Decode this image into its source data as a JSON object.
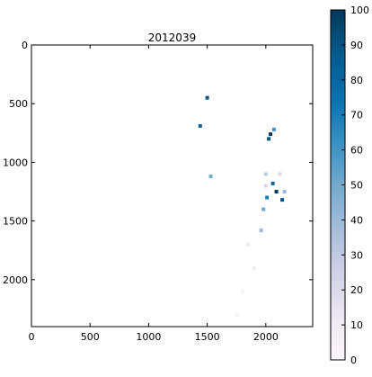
{
  "chart_data": {
    "type": "heatmap",
    "title": "2012039",
    "xlabel": "",
    "ylabel": "",
    "xlim": [
      0,
      2400
    ],
    "ylim": [
      2400,
      0
    ],
    "x_ticks": [
      0,
      500,
      1000,
      1500,
      2000
    ],
    "y_ticks": [
      0,
      500,
      1000,
      1500,
      2000
    ],
    "colorbar": {
      "range": [
        0,
        100
      ],
      "ticks": [
        0,
        10,
        20,
        30,
        40,
        50,
        60,
        70,
        80,
        90,
        100
      ],
      "colormap": "PuBu",
      "stops": [
        "#fff7fb",
        "#ece7f2",
        "#d0d1e6",
        "#a6bddb",
        "#74a9cf",
        "#3690c0",
        "#0570b0",
        "#045a8d",
        "#023858"
      ]
    },
    "features": [
      {
        "x": 1500,
        "y": 450,
        "v": 90
      },
      {
        "x": 1440,
        "y": 690,
        "v": 80
      },
      {
        "x": 2040,
        "y": 760,
        "v": 100
      },
      {
        "x": 2025,
        "y": 800,
        "v": 90
      },
      {
        "x": 2070,
        "y": 720,
        "v": 60
      },
      {
        "x": 2090,
        "y": 1250,
        "v": 100
      },
      {
        "x": 2060,
        "y": 1180,
        "v": 80
      },
      {
        "x": 2140,
        "y": 1320,
        "v": 90
      },
      {
        "x": 2010,
        "y": 1300,
        "v": 70
      },
      {
        "x": 2000,
        "y": 1100,
        "v": 30
      },
      {
        "x": 2120,
        "y": 1100,
        "v": 20
      },
      {
        "x": 2000,
        "y": 1200,
        "v": 20
      },
      {
        "x": 2160,
        "y": 1250,
        "v": 40
      },
      {
        "x": 1960,
        "y": 1580,
        "v": 40
      },
      {
        "x": 1980,
        "y": 1400,
        "v": 50
      },
      {
        "x": 1850,
        "y": 1700,
        "v": 10
      },
      {
        "x": 1900,
        "y": 1900,
        "v": 10
      },
      {
        "x": 1800,
        "y": 2100,
        "v": 5
      },
      {
        "x": 1750,
        "y": 2300,
        "v": 5
      },
      {
        "x": 1530,
        "y": 1120,
        "v": 50
      }
    ]
  }
}
